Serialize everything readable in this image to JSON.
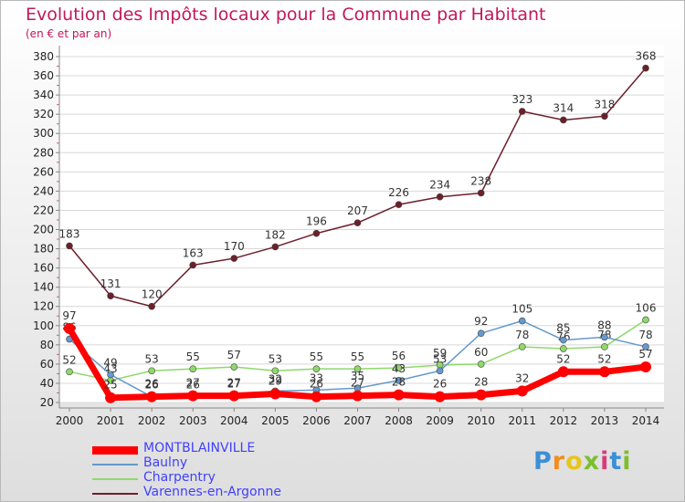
{
  "header": {
    "title": "Evolution des Impôts locaux pour la Commune par Habitant",
    "subtitle": "(en € et par an)"
  },
  "chart_data": {
    "type": "line",
    "title": "Evolution des Impôts locaux pour la Commune par Habitant",
    "subtitle": "(en € et par an)",
    "xlabel": "",
    "ylabel": "",
    "categories": [
      "2000",
      "2001",
      "2002",
      "2003",
      "2004",
      "2005",
      "2006",
      "2007",
      "2008",
      "2009",
      "2010",
      "2011",
      "2012",
      "2013",
      "2014"
    ],
    "ylim": [
      20,
      380
    ],
    "yticks": [
      20,
      40,
      60,
      80,
      100,
      120,
      140,
      160,
      180,
      200,
      220,
      240,
      260,
      280,
      300,
      320,
      340,
      360,
      380
    ],
    "grid": true,
    "legend_position": "bottom-left",
    "series": [
      {
        "name": "Varennes-en-Argonne",
        "color": "#6d1f2a",
        "values": [
          183,
          131,
          120,
          163,
          170,
          182,
          196,
          207,
          226,
          234,
          238,
          323,
          314,
          318,
          368
        ]
      },
      {
        "name": "Charpentry",
        "color": "#8fd86a",
        "values": [
          52,
          43,
          53,
          55,
          57,
          53,
          55,
          55,
          56,
          59,
          60,
          78,
          76,
          78,
          106
        ]
      },
      {
        "name": "Baulny",
        "color": "#6699cc",
        "values": [
          86,
          49,
          26,
          26,
          27,
          32,
          33,
          35,
          43,
          53,
          92,
          105,
          85,
          88,
          78
        ]
      },
      {
        "name": "MONTBLAINVILLE",
        "color": "#ff0000",
        "values": [
          97,
          25,
          26,
          27,
          27,
          29,
          26,
          27,
          28,
          26,
          28,
          32,
          52,
          52,
          57
        ]
      }
    ]
  },
  "legend": [
    {
      "name": "MONTBLAINVILLE",
      "color": "#ff0000",
      "text_color": "#4040ff"
    },
    {
      "name": "Baulny",
      "color": "#6699cc",
      "text_color": "#4040ff"
    },
    {
      "name": "Charpentry",
      "color": "#8fd86a",
      "text_color": "#4040ff"
    },
    {
      "name": "Varennes-en-Argonne",
      "color": "#6d1f2a",
      "text_color": "#4040ff"
    }
  ],
  "logo": {
    "text": "Proxiti"
  }
}
